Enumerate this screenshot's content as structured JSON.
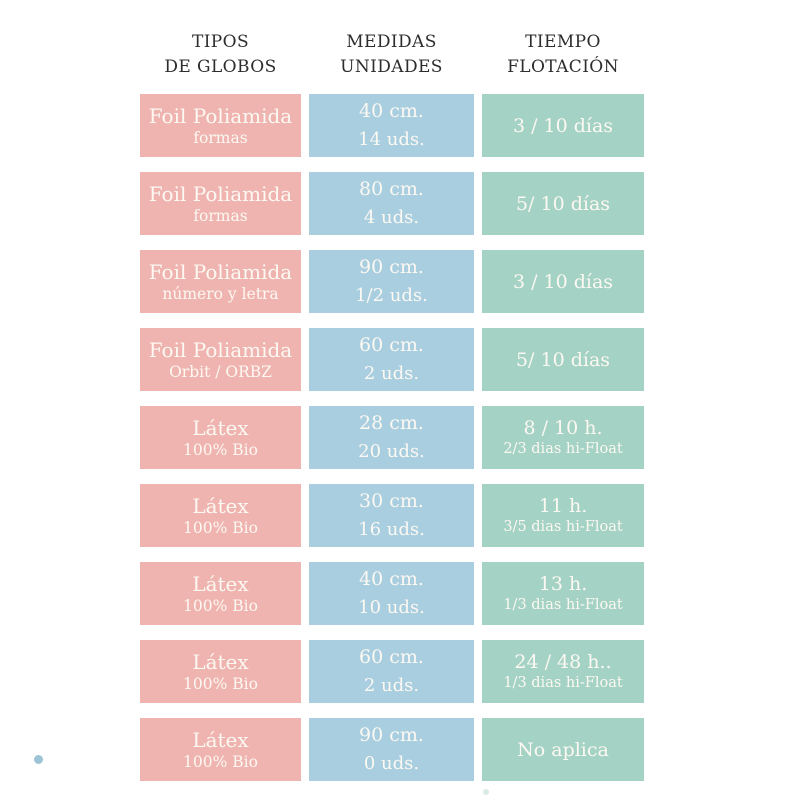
{
  "colors": {
    "type_cell": "#f0b4b0",
    "measure_cell": "#a8cee0",
    "float_cell": "#a4d2c4",
    "header_text": "#2d2d2d",
    "cell_text": "#fcf8f2",
    "dot_blue": "#9cc3d6",
    "dot_faint": "#d9ebe6"
  },
  "header": {
    "columns": [
      {
        "line1": "TIPOS",
        "line2": "DE GLOBOS"
      },
      {
        "line1": "MEDIDAS",
        "line2": "UNIDADES"
      },
      {
        "line1": "TIEMPO",
        "line2": "FLOTACIÓN"
      }
    ]
  },
  "table": {
    "rows": [
      {
        "type": {
          "title": "Foil Poliamida",
          "subtitle": "formas"
        },
        "measure": {
          "size": "40 cm.",
          "units": "14 uds."
        },
        "float": {
          "title": "3 / 10 días",
          "subtitle": ""
        }
      },
      {
        "type": {
          "title": "Foil Poliamida",
          "subtitle": "formas"
        },
        "measure": {
          "size": "80 cm.",
          "units": "4 uds."
        },
        "float": {
          "title": "5/ 10 días",
          "subtitle": ""
        }
      },
      {
        "type": {
          "title": "Foil Poliamida",
          "subtitle": "número y letra"
        },
        "measure": {
          "size": "90 cm.",
          "units": "1/2 uds."
        },
        "float": {
          "title": "3 / 10 días",
          "subtitle": ""
        }
      },
      {
        "type": {
          "title": "Foil Poliamida",
          "subtitle": "Orbit / ORBZ"
        },
        "measure": {
          "size": "60 cm.",
          "units": "2 uds."
        },
        "float": {
          "title": "5/ 10 días",
          "subtitle": ""
        }
      },
      {
        "type": {
          "title": "Látex",
          "subtitle": "100% Bio"
        },
        "measure": {
          "size": "28 cm.",
          "units": "20 uds."
        },
        "float": {
          "title": "8 / 10 h.",
          "subtitle": "2/3 dias hi-Float"
        }
      },
      {
        "type": {
          "title": "Látex",
          "subtitle": "100% Bio"
        },
        "measure": {
          "size": "30 cm.",
          "units": "16 uds."
        },
        "float": {
          "title": "11 h.",
          "subtitle": "3/5 dias hi-Float"
        }
      },
      {
        "type": {
          "title": "Látex",
          "subtitle": "100% Bio"
        },
        "measure": {
          "size": "40 cm.",
          "units": "10 uds."
        },
        "float": {
          "title": "13 h.",
          "subtitle": "1/3 dias hi-Float"
        }
      },
      {
        "type": {
          "title": "Látex",
          "subtitle": "100% Bio"
        },
        "measure": {
          "size": "60 cm.",
          "units": "2 uds."
        },
        "float": {
          "title": "24 / 48 h..",
          "subtitle": "1/3 dias hi-Float"
        }
      },
      {
        "type": {
          "title": "Látex",
          "subtitle": "100% Bio"
        },
        "measure": {
          "size": "90 cm.",
          "units": "0 uds."
        },
        "float": {
          "title": "No aplica",
          "subtitle": ""
        }
      }
    ]
  },
  "chart_data": {
    "type": "table",
    "title": "",
    "columns": [
      "TIPOS DE GLOBOS",
      "MEDIDAS UNIDADES",
      "TIEMPO FLOTACIÓN"
    ],
    "rows": [
      [
        "Foil Poliamida — formas",
        "40 cm. — 14 uds.",
        "3 / 10 días"
      ],
      [
        "Foil Poliamida — formas",
        "80 cm. — 4 uds.",
        "5/ 10 días"
      ],
      [
        "Foil Poliamida — número y letra",
        "90 cm. — 1/2 uds.",
        "3 / 10 días"
      ],
      [
        "Foil Poliamida — Orbit / ORBZ",
        "60 cm. — 2 uds.",
        "5/ 10 días"
      ],
      [
        "Látex — 100% Bio",
        "28 cm. — 20 uds.",
        "8 / 10 h. — 2/3 dias hi-Float"
      ],
      [
        "Látex — 100% Bio",
        "30 cm. — 16 uds.",
        "11 h. — 3/5 dias hi-Float"
      ],
      [
        "Látex — 100% Bio",
        "40 cm. — 10 uds.",
        "13 h. — 1/3 dias hi-Float"
      ],
      [
        "Látex — 100% Bio",
        "60 cm. — 2 uds.",
        "24 / 48 h.. — 1/3 dias hi-Float"
      ],
      [
        "Látex — 100% Bio",
        "90 cm. — 0 uds.",
        "No aplica"
      ]
    ]
  }
}
